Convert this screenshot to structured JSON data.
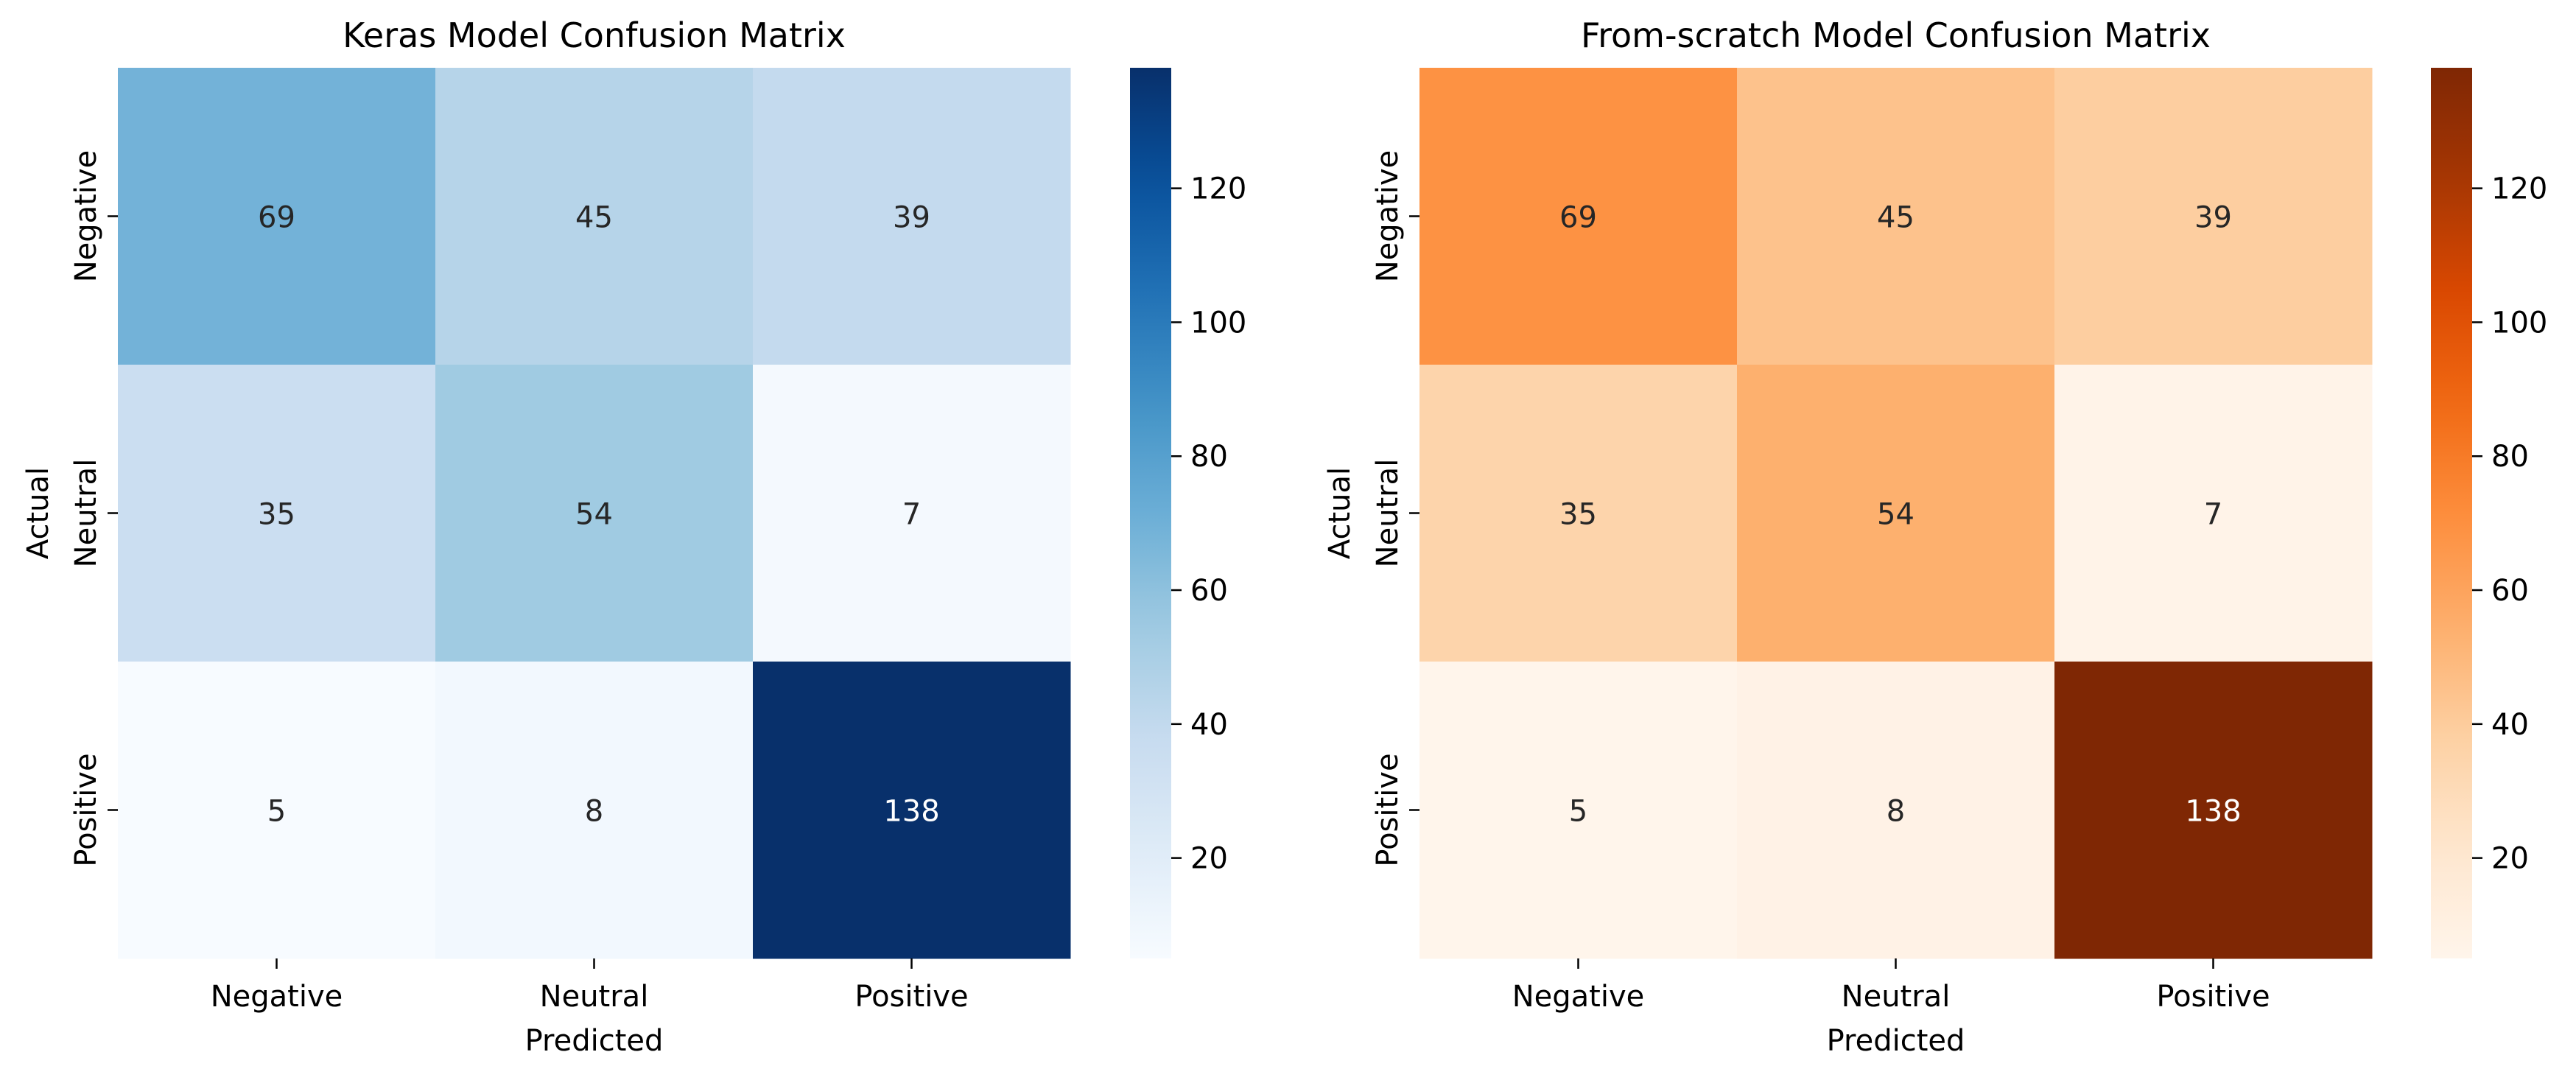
{
  "chart_data": [
    {
      "type": "heatmap",
      "title": "Keras Model Confusion Matrix",
      "xlabel": "Predicted",
      "ylabel": "Actual",
      "x_categories": [
        "Negative",
        "Neutral",
        "Positive"
      ],
      "y_categories": [
        "Negative",
        "Neutral",
        "Positive"
      ],
      "values": [
        [
          69,
          45,
          39
        ],
        [
          35,
          54,
          7
        ],
        [
          5,
          8,
          138
        ]
      ],
      "colormap": "Blues",
      "colorbar": {
        "range": [
          5,
          138
        ],
        "ticks": [
          20,
          40,
          60,
          80,
          100,
          120
        ]
      }
    },
    {
      "type": "heatmap",
      "title": "From-scratch Model Confusion Matrix",
      "xlabel": "Predicted",
      "ylabel": "Actual",
      "x_categories": [
        "Negative",
        "Neutral",
        "Positive"
      ],
      "y_categories": [
        "Negative",
        "Neutral",
        "Positive"
      ],
      "values": [
        [
          69,
          45,
          39
        ],
        [
          35,
          54,
          7
        ],
        [
          5,
          8,
          138
        ]
      ],
      "colormap": "Oranges",
      "colorbar": {
        "range": [
          5,
          138
        ],
        "ticks": [
          20,
          40,
          60,
          80,
          100,
          120
        ]
      }
    }
  ]
}
